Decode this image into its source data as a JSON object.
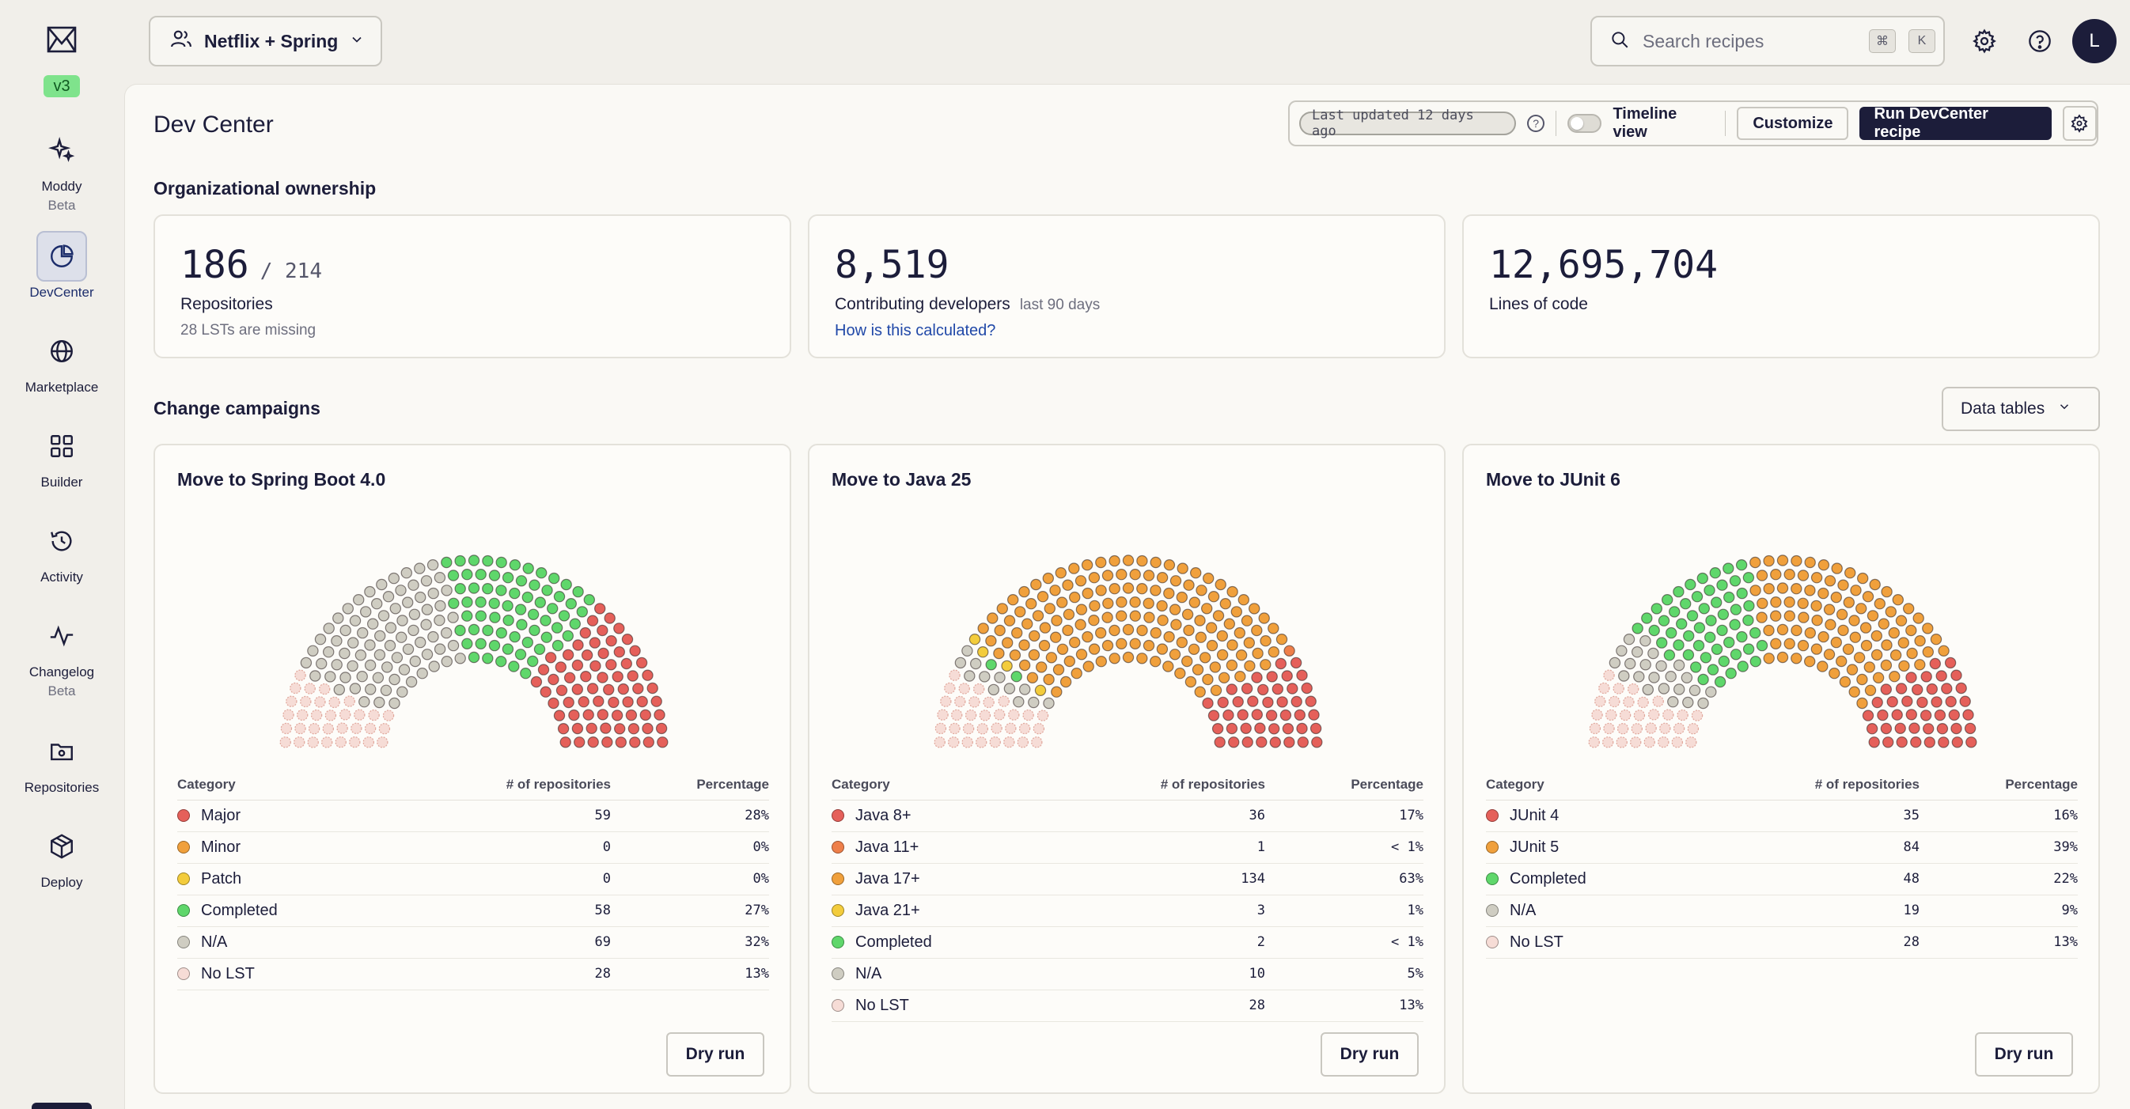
{
  "sidebar": {
    "version": "v3",
    "items": [
      {
        "key": "moddy",
        "label": "Moddy",
        "sub": "Beta"
      },
      {
        "key": "devcenter",
        "label": "DevCenter",
        "sub": ""
      },
      {
        "key": "marketplace",
        "label": "Marketplace",
        "sub": ""
      },
      {
        "key": "builder",
        "label": "Builder",
        "sub": ""
      },
      {
        "key": "activity",
        "label": "Activity",
        "sub": ""
      },
      {
        "key": "changelog",
        "label": "Changelog",
        "sub": "Beta"
      },
      {
        "key": "repositories",
        "label": "Repositories",
        "sub": ""
      },
      {
        "key": "deploy",
        "label": "Deploy",
        "sub": ""
      }
    ],
    "active": "devcenter"
  },
  "header": {
    "org": "Netflix + Spring",
    "search_placeholder": "Search recipes",
    "kbd_cmd": "⌘",
    "kbd_k": "K",
    "avatar": "L"
  },
  "page": {
    "title": "Dev Center",
    "last_updated": "Last updated 12 days ago",
    "timeline_label": "Timeline view",
    "customize": "Customize",
    "run_recipe": "Run DevCenter recipe"
  },
  "ownership": {
    "title": "Organizational ownership",
    "repos": {
      "value": "186",
      "of": "/ 214",
      "label": "Repositories",
      "note": "28 LSTs are missing"
    },
    "devs": {
      "value": "8,519",
      "label": "Contributing developers",
      "sub": "last 90 days",
      "link": "How is this calculated?"
    },
    "loc": {
      "value": "12,695,704",
      "label": "Lines of code"
    }
  },
  "campaigns_section": {
    "title": "Change campaigns",
    "data_tables": "Data tables",
    "col_category": "Category",
    "col_repos": "# of repositories",
    "col_pct": "Percentage",
    "dry_run": "Dry run"
  },
  "colors": {
    "red": "#e5605a",
    "orange": "#f0a03c",
    "yellow": "#f3cc3c",
    "green": "#5fd76b",
    "na": "#cfcdc2",
    "nolst": "#f6dcd6"
  },
  "campaigns": [
    {
      "title": "Move to Spring Boot 4.0",
      "rows": [
        {
          "category": "Major",
          "count": 59,
          "count_label": "59",
          "pct": "28%",
          "color": "#e5605a"
        },
        {
          "category": "Minor",
          "count": 0,
          "count_label": "0",
          "pct": "0%",
          "color": "#f0a03c"
        },
        {
          "category": "Patch",
          "count": 0,
          "count_label": "0",
          "pct": "0%",
          "color": "#f3cc3c"
        },
        {
          "category": "Completed",
          "count": 58,
          "count_label": "58",
          "pct": "27%",
          "color": "#5fd76b"
        },
        {
          "category": "N/A",
          "count": 69,
          "count_label": "69",
          "pct": "32%",
          "color": "#cfcdc2"
        },
        {
          "category": "No LST",
          "count": 28,
          "count_label": "28",
          "pct": "13%",
          "color": "#f6dcd6"
        }
      ]
    },
    {
      "title": "Move to Java 25",
      "rows": [
        {
          "category": "Java 8+",
          "count": 36,
          "count_label": "36",
          "pct": "17%",
          "color": "#e5605a"
        },
        {
          "category": "Java 11+",
          "count": 1,
          "count_label": "1",
          "pct": "< 1%",
          "color": "#ee7f4a"
        },
        {
          "category": "Java 17+",
          "count": 134,
          "count_label": "134",
          "pct": "63%",
          "color": "#f0a03c"
        },
        {
          "category": "Java 21+",
          "count": 3,
          "count_label": "3",
          "pct": "1%",
          "color": "#f3cc3c"
        },
        {
          "category": "Completed",
          "count": 2,
          "count_label": "2",
          "pct": "< 1%",
          "color": "#5fd76b"
        },
        {
          "category": "N/A",
          "count": 10,
          "count_label": "10",
          "pct": "5%",
          "color": "#cfcdc2"
        },
        {
          "category": "No LST",
          "count": 28,
          "count_label": "28",
          "pct": "13%",
          "color": "#f6dcd6"
        }
      ]
    },
    {
      "title": "Move to JUnit 6",
      "rows": [
        {
          "category": "JUnit 4",
          "count": 35,
          "count_label": "35",
          "pct": "16%",
          "color": "#e5605a"
        },
        {
          "category": "JUnit 5",
          "count": 84,
          "count_label": "84",
          "pct": "39%",
          "color": "#f0a03c"
        },
        {
          "category": "Completed",
          "count": 48,
          "count_label": "48",
          "pct": "22%",
          "color": "#5fd76b"
        },
        {
          "category": "N/A",
          "count": 19,
          "count_label": "19",
          "pct": "9%",
          "color": "#cfcdc2"
        },
        {
          "category": "No LST",
          "count": 28,
          "count_label": "28",
          "pct": "13%",
          "color": "#f6dcd6"
        }
      ]
    }
  ]
}
